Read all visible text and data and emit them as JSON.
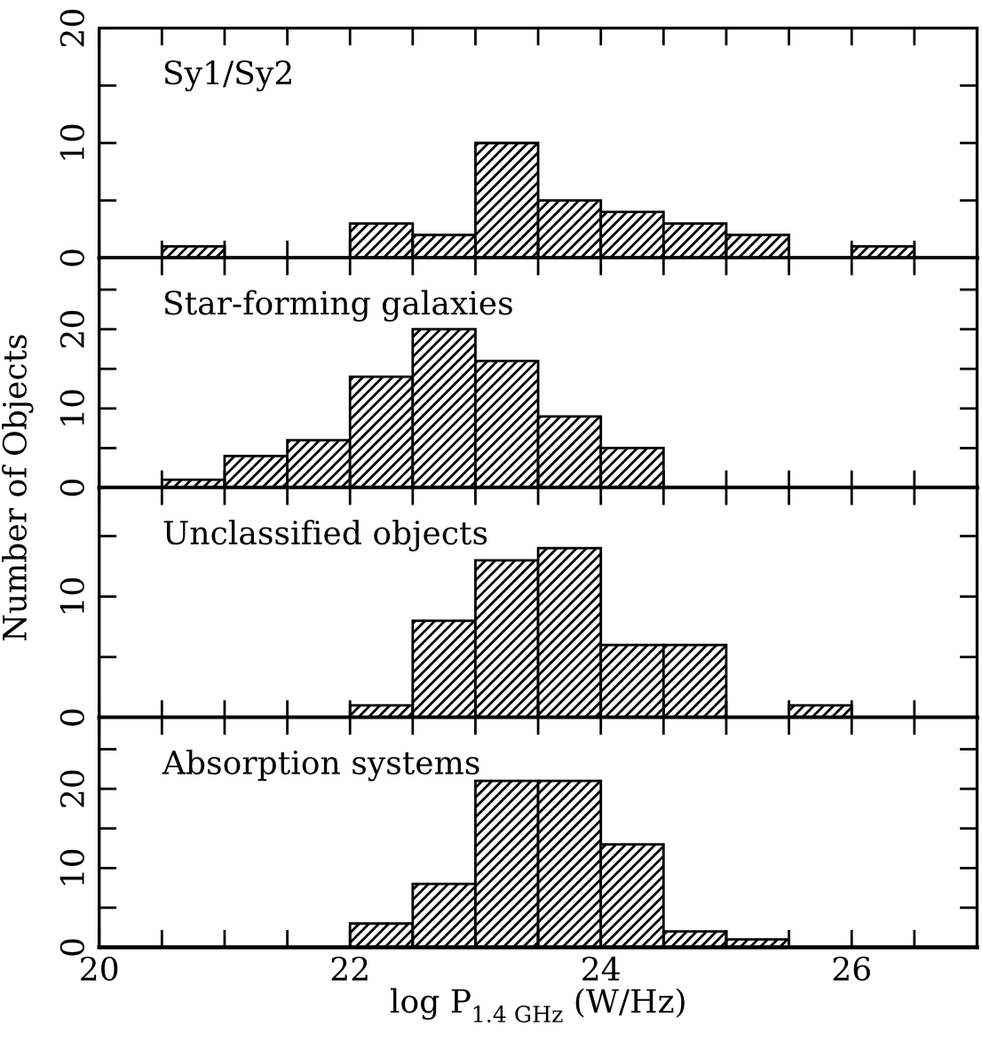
{
  "chart_data": [
    {
      "type": "histogram",
      "title": "Sy1/Sy2",
      "bins": [
        20,
        20.5,
        21,
        21.5,
        22,
        22.5,
        23,
        23.5,
        24,
        24.5,
        25,
        25.5,
        26,
        26.5,
        27
      ],
      "values": [
        0,
        1,
        0,
        0,
        3,
        2,
        10,
        5,
        4,
        3,
        2,
        0,
        1,
        0
      ],
      "color": "#000000",
      "xlim": [
        20,
        27
      ],
      "xticks": [
        20,
        {
          "value": 20.5,
          "label": null
        },
        {
          "value": 21,
          "label": null
        },
        {
          "value": 21.5,
          "label": null
        },
        22,
        {
          "value": 22.5,
          "label": null
        },
        {
          "value": 23,
          "label": null
        },
        {
          "value": 23.5,
          "label": null
        },
        24,
        {
          "value": 24.5,
          "label": null
        },
        {
          "value": 25,
          "label": null
        },
        {
          "value": 25.5,
          "label": null
        },
        26,
        {
          "value": 26.5,
          "label": null
        }
      ],
      "ylim": [
        0,
        20
      ],
      "yticks": [
        0,
        {
          "value": 5,
          "label": null
        },
        10,
        {
          "value": 15,
          "label": null
        },
        20
      ],
      "tick_labels": "y",
      "grid": false,
      "legend": false
    },
    {
      "type": "histogram",
      "title": "Star-forming galaxies",
      "ylabel": "Number of Objects",
      "bins": [
        20,
        20.5,
        21,
        21.5,
        22,
        22.5,
        23,
        23.5,
        24,
        24.5,
        25,
        25.5,
        26,
        26.5,
        27
      ],
      "values": [
        0,
        1,
        4,
        6,
        14,
        20,
        16,
        9,
        5,
        0,
        0,
        0,
        0,
        0
      ],
      "color": "#000000",
      "xlim": [
        20,
        27
      ],
      "xticks": [
        20,
        {
          "value": 20.5,
          "label": null
        },
        {
          "value": 21,
          "label": null
        },
        {
          "value": 21.5,
          "label": null
        },
        22,
        {
          "value": 22.5,
          "label": null
        },
        {
          "value": 23,
          "label": null
        },
        {
          "value": 23.5,
          "label": null
        },
        24,
        {
          "value": 24.5,
          "label": null
        },
        {
          "value": 25,
          "label": null
        },
        {
          "value": 25.5,
          "label": null
        },
        26,
        {
          "value": 26.5,
          "label": null
        }
      ],
      "ylim": [
        0,
        29
      ],
      "yticks": [
        0,
        {
          "value": 5,
          "label": null
        },
        10,
        {
          "value": 15,
          "label": null
        },
        20,
        {
          "value": 25,
          "label": null
        }
      ],
      "tick_labels": "y",
      "grid": false,
      "legend": false
    },
    {
      "type": "histogram",
      "title": "Unclassified objects",
      "bins": [
        20,
        20.5,
        21,
        21.5,
        22,
        22.5,
        23,
        23.5,
        24,
        24.5,
        25,
        25.5,
        26,
        26.5,
        27
      ],
      "values": [
        0,
        0,
        0,
        0,
        1,
        8,
        13,
        14,
        6,
        6,
        0,
        1,
        0,
        0
      ],
      "color": "#000000",
      "xlim": [
        20,
        27
      ],
      "xticks": [
        20,
        {
          "value": 20.5,
          "label": null
        },
        {
          "value": 21,
          "label": null
        },
        {
          "value": 21.5,
          "label": null
        },
        22,
        {
          "value": 22.5,
          "label": null
        },
        {
          "value": 23,
          "label": null
        },
        {
          "value": 23.5,
          "label": null
        },
        24,
        {
          "value": 24.5,
          "label": null
        },
        {
          "value": 25,
          "label": null
        },
        {
          "value": 25.5,
          "label": null
        },
        26,
        {
          "value": 26.5,
          "label": null
        }
      ],
      "ylim": [
        0,
        19
      ],
      "yticks": [
        0,
        {
          "value": 5,
          "label": null
        },
        10,
        {
          "value": 15,
          "label": null
        }
      ],
      "tick_labels": "y",
      "grid": false,
      "legend": false
    },
    {
      "type": "histogram",
      "title": "Absorption systems",
      "xlabel": "log P$_{1.4 GHz}$ (W/Hz)",
      "bins": [
        20,
        20.5,
        21,
        21.5,
        22,
        22.5,
        23,
        23.5,
        24,
        24.5,
        25,
        25.5,
        26,
        26.5,
        27
      ],
      "values": [
        0,
        0,
        0,
        0,
        3,
        8,
        21,
        21,
        13,
        2,
        1,
        0,
        0,
        0
      ],
      "color": "#000000",
      "xlim": [
        20,
        27
      ],
      "xticks": [
        20,
        {
          "value": 20.5,
          "label": null
        },
        {
          "value": 21,
          "label": null
        },
        {
          "value": 21.5,
          "label": null
        },
        22,
        {
          "value": 22.5,
          "label": null
        },
        {
          "value": 23,
          "label": null
        },
        {
          "value": 23.5,
          "label": null
        },
        24,
        {
          "value": 24.5,
          "label": null
        },
        {
          "value": 25,
          "label": null
        },
        {
          "value": 25.5,
          "label": null
        },
        26,
        {
          "value": 26.5,
          "label": null
        }
      ],
      "ylim": [
        0,
        29
      ],
      "yticks": [
        0,
        {
          "value": 5,
          "label": null
        },
        10,
        {
          "value": 15,
          "label": null
        },
        20,
        {
          "value": 25,
          "label": null
        }
      ],
      "grid": false,
      "legend": false
    }
  ]
}
